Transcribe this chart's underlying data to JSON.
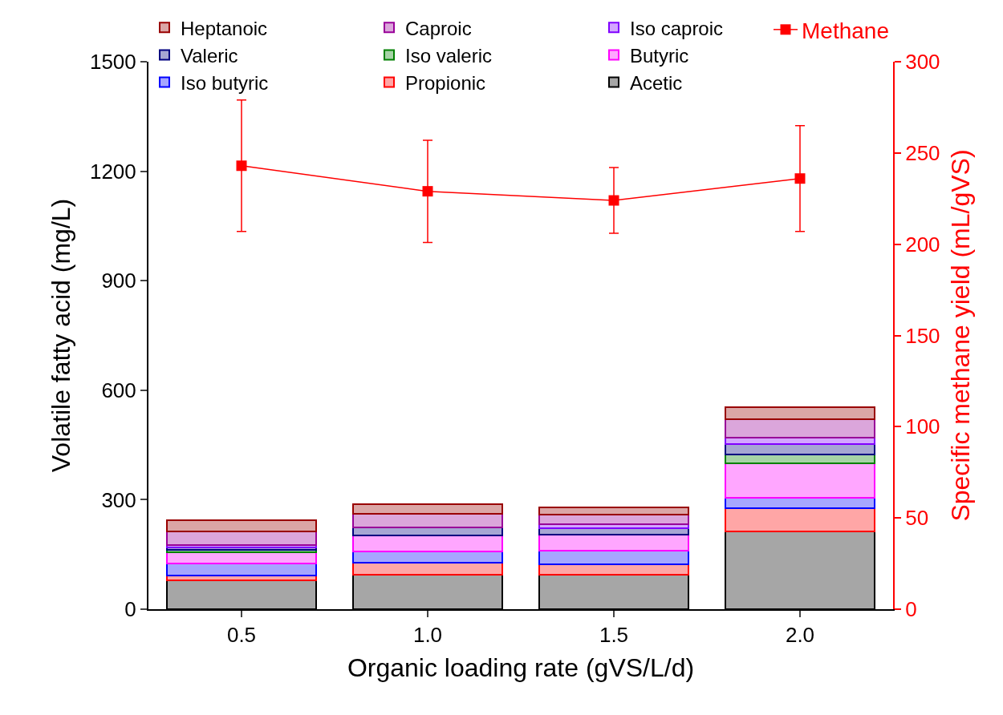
{
  "chart_data": {
    "type": "bar",
    "stacked": true,
    "xlabel": "Organic loading rate (gVS/L/d)",
    "ylabel": "Volatile fatty acid (mg/L)",
    "y2label": "Specific methane yield (mL/gVS)",
    "x": [
      0.5,
      1.0,
      1.5,
      2.0
    ],
    "xlim": [
      0.25,
      2.25
    ],
    "xticks": [
      {
        "value": 0.5,
        "label": "0.5"
      },
      {
        "value": 1.0,
        "label": "1.0"
      },
      {
        "value": 1.5,
        "label": "1.5"
      },
      {
        "value": 2.0,
        "label": "2.0"
      }
    ],
    "ylim": [
      0,
      1500
    ],
    "yticks": [
      0,
      300,
      600,
      900,
      1200,
      1500
    ],
    "y2lim": [
      0,
      300
    ],
    "y2ticks": [
      0,
      50,
      100,
      150,
      200,
      250,
      300
    ],
    "legend": "top",
    "series": [
      {
        "name": "Acetic",
        "color": "#000000",
        "values": [
          78,
          94,
          94,
          212
        ]
      },
      {
        "name": "Propionic",
        "color": "#ff0000",
        "values": [
          14,
          33,
          30,
          64
        ]
      },
      {
        "name": "Iso butyric",
        "color": "#0000ff",
        "values": [
          34,
          31,
          37,
          29
        ]
      },
      {
        "name": "Butyric",
        "color": "#ff00ff",
        "values": [
          31,
          44,
          44,
          95
        ]
      },
      {
        "name": "Iso valeric",
        "color": "#008000",
        "values": [
          5,
          0,
          0,
          23
        ]
      },
      {
        "name": "Valeric",
        "color": "#000080",
        "values": [
          8,
          23,
          16,
          30
        ]
      },
      {
        "name": "Iso caproic",
        "color": "#8000ff",
        "values": [
          6,
          0,
          11,
          17
        ]
      },
      {
        "name": "Caproic",
        "color": "#990099",
        "values": [
          36,
          37,
          28,
          50
        ]
      },
      {
        "name": "Heptanoic",
        "color": "#990000",
        "values": [
          32,
          25,
          20,
          34
        ]
      },
      {
        "name": "Methane",
        "type": "line",
        "axis": "y2",
        "color": "#ff0000",
        "marker": "square",
        "values": [
          243,
          229,
          224,
          236
        ],
        "errors": [
          36,
          28,
          18,
          29
        ]
      }
    ]
  }
}
